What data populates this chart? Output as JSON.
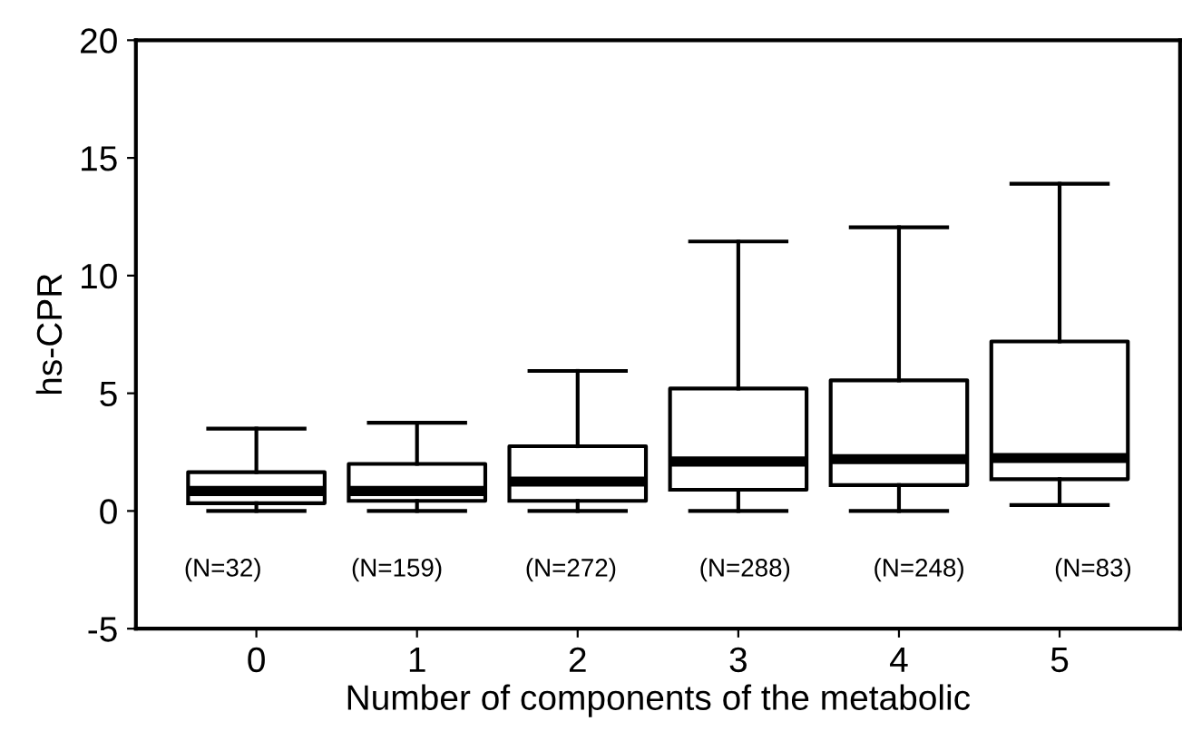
{
  "chart_data": {
    "type": "box",
    "xlabel": "Number of components of the metabolic",
    "ylabel": "hs-CPR",
    "categories": [
      "0",
      "1",
      "2",
      "3",
      "4",
      "5"
    ],
    "boxes": [
      {
        "low": 0,
        "q1": 0.33,
        "median": 0.85,
        "q3": 1.65,
        "high": 3.5
      },
      {
        "low": 0,
        "q1": 0.43,
        "median": 0.85,
        "q3": 2.0,
        "high": 3.75
      },
      {
        "low": 0,
        "q1": 0.43,
        "median": 1.25,
        "q3": 2.75,
        "high": 5.95
      },
      {
        "low": 0,
        "q1": 0.9,
        "median": 2.1,
        "q3": 5.2,
        "high": 11.45
      },
      {
        "low": 0,
        "q1": 1.1,
        "median": 2.2,
        "q3": 5.55,
        "high": 12.05
      },
      {
        "low": 0.25,
        "q1": 1.35,
        "median": 2.25,
        "q3": 7.2,
        "high": 13.9
      }
    ],
    "color": "#000000",
    "ylim": [
      -5,
      20
    ],
    "yticks": [
      -5,
      0,
      5,
      10,
      15,
      20
    ],
    "grid": false,
    "legend": false,
    "annotations": [
      "(N=32)",
      "(N=159)",
      "(N=272)",
      "(N=288)",
      "(N=248)",
      "(N=83)"
    ]
  }
}
